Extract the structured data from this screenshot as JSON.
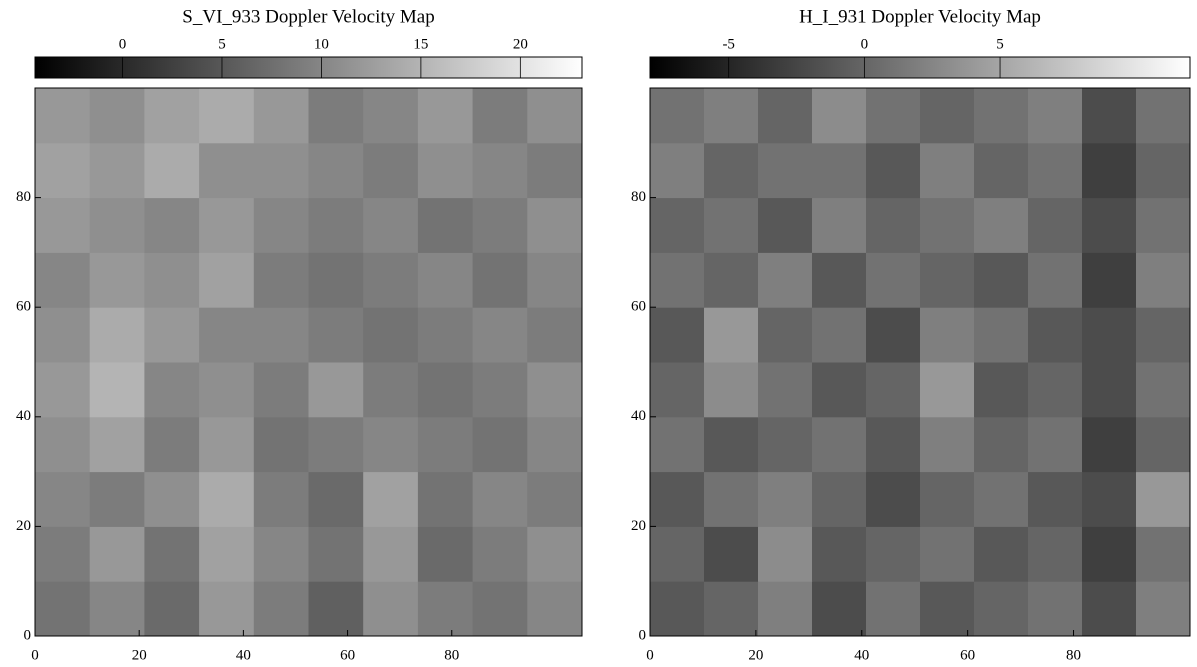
{
  "chart_data": [
    {
      "type": "heatmap",
      "title": "S_VI_933 Doppler Velocity Map",
      "xlim": [
        0,
        105
      ],
      "xticks": [
        0,
        20,
        40,
        60,
        80
      ],
      "ylim": [
        0,
        100
      ],
      "yticks": [
        0,
        20,
        40,
        60,
        80
      ],
      "zlim": [
        -4.4,
        23.1
      ],
      "zticks": [
        0,
        5,
        10,
        15,
        20
      ],
      "colormap": [
        "#000000",
        "#ffffff"
      ],
      "values": [
        [
          8,
          10,
          7,
          12,
          9,
          6,
          11,
          9,
          8,
          10
        ],
        [
          9,
          12,
          8,
          13,
          10,
          8,
          12,
          7,
          9,
          11
        ],
        [
          10,
          9,
          11,
          14,
          9,
          7,
          13,
          8,
          10,
          9
        ],
        [
          11,
          13,
          9,
          12,
          8,
          9,
          10,
          9,
          8,
          10
        ],
        [
          12,
          15,
          10,
          11,
          9,
          12,
          9,
          8,
          9,
          11
        ],
        [
          11,
          14,
          12,
          10,
          10,
          9,
          8,
          9,
          10,
          9
        ],
        [
          10,
          12,
          11,
          13,
          9,
          8,
          9,
          10,
          8,
          10
        ],
        [
          12,
          11,
          10,
          12,
          10,
          9,
          10,
          8,
          9,
          11
        ],
        [
          13,
          12,
          14,
          11,
          11,
          10,
          9,
          11,
          10,
          9
        ],
        [
          12,
          11,
          13,
          14,
          12,
          9,
          10,
          12,
          9,
          11
        ]
      ]
    },
    {
      "type": "heatmap",
      "title": "H_I_931 Doppler Velocity Map",
      "xlim": [
        0,
        102
      ],
      "xticks": [
        0,
        20,
        40,
        60,
        80
      ],
      "ylim": [
        0,
        100
      ],
      "yticks": [
        0,
        20,
        40,
        60,
        80
      ],
      "zlim": [
        -7.9,
        12
      ],
      "zticks": [
        -5,
        0,
        5
      ],
      "colormap": [
        "#000000",
        "#ffffff"
      ],
      "values": [
        [
          -1,
          0,
          2,
          -2,
          1,
          -1,
          0,
          1,
          -2,
          2
        ],
        [
          0,
          -2,
          3,
          -1,
          0,
          1,
          -1,
          0,
          -3,
          1
        ],
        [
          -1,
          1,
          2,
          0,
          -2,
          0,
          1,
          -1,
          -2,
          4
        ],
        [
          1,
          -1,
          0,
          1,
          -1,
          2,
          0,
          1,
          -3,
          0
        ],
        [
          0,
          3,
          1,
          -1,
          0,
          4,
          -1,
          0,
          -2,
          1
        ],
        [
          -1,
          4,
          0,
          1,
          -2,
          2,
          1,
          -1,
          -2,
          0
        ],
        [
          1,
          0,
          2,
          -1,
          1,
          0,
          -1,
          1,
          -3,
          2
        ],
        [
          0,
          1,
          -1,
          2,
          0,
          1,
          2,
          0,
          -2,
          1
        ],
        [
          2,
          0,
          1,
          1,
          -1,
          2,
          0,
          1,
          -3,
          0
        ],
        [
          1,
          2,
          0,
          3,
          1,
          0,
          1,
          2,
          -2,
          1
        ]
      ]
    }
  ]
}
